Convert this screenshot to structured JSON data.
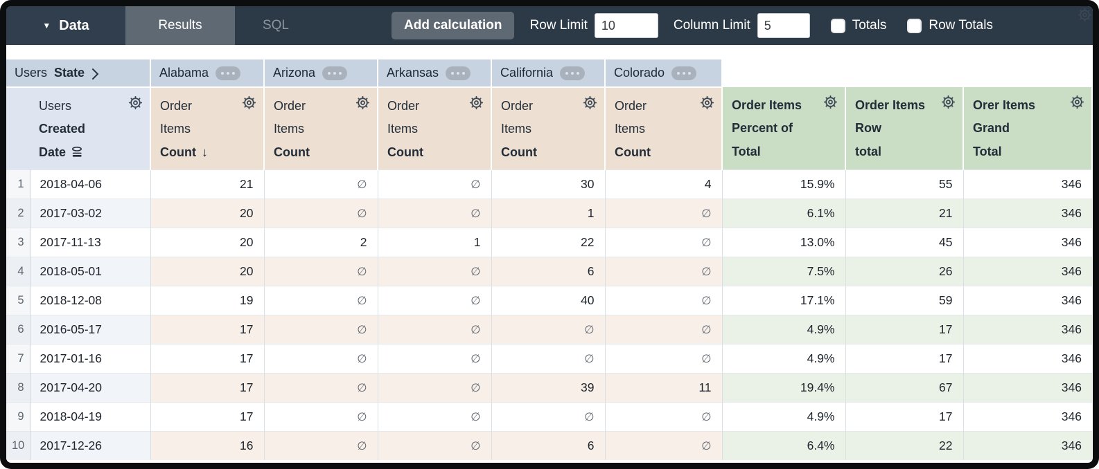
{
  "toolbar": {
    "data_label": "Data",
    "tabs": [
      {
        "label": "Results",
        "active": true
      },
      {
        "label": "SQL",
        "active": false
      }
    ],
    "add_calculation_label": "Add calculation",
    "row_limit_label": "Row Limit",
    "row_limit_value": "10",
    "column_limit_label": "Column Limit",
    "column_limit_value": "5",
    "totals_label": "Totals",
    "totals_checked": false,
    "row_totals_label": "Row Totals",
    "row_totals_checked": false
  },
  "pivot": {
    "dimension_label_plain": "Users",
    "dimension_label_bold": "State",
    "values": [
      "Alabama",
      "Arizona",
      "Arkansas",
      "California",
      "Colorado"
    ]
  },
  "table": {
    "row_dimension_header": {
      "line1": "Users",
      "line2": "Created",
      "line3": "Date"
    },
    "measure_header": {
      "line1": "Order",
      "line2": "Items",
      "line3": "Count"
    },
    "sort_indicator": "↓",
    "sorted_pivot_index": 0,
    "calc_headers": [
      {
        "lines": [
          "Order Items",
          "Percent of",
          "Total"
        ]
      },
      {
        "lines": [
          "Order Items",
          "Row",
          "total"
        ]
      },
      {
        "lines": [
          "Orer Items",
          "Grand",
          "Total"
        ]
      }
    ],
    "null_symbol": "∅",
    "rows": [
      {
        "n": "1",
        "date": "2018-04-06",
        "values": [
          "21",
          null,
          null,
          "30",
          "4"
        ],
        "calcs": [
          "15.9%",
          "55",
          "346"
        ]
      },
      {
        "n": "2",
        "date": "2017-03-02",
        "values": [
          "20",
          null,
          null,
          "1",
          null
        ],
        "calcs": [
          "6.1%",
          "21",
          "346"
        ]
      },
      {
        "n": "3",
        "date": "2017-11-13",
        "values": [
          "20",
          "2",
          "1",
          "22",
          null
        ],
        "calcs": [
          "13.0%",
          "45",
          "346"
        ]
      },
      {
        "n": "4",
        "date": "2018-05-01",
        "values": [
          "20",
          null,
          null,
          "6",
          null
        ],
        "calcs": [
          "7.5%",
          "26",
          "346"
        ]
      },
      {
        "n": "5",
        "date": "2018-12-08",
        "values": [
          "19",
          null,
          null,
          "40",
          null
        ],
        "calcs": [
          "17.1%",
          "59",
          "346"
        ]
      },
      {
        "n": "6",
        "date": "2016-05-17",
        "values": [
          "17",
          null,
          null,
          null,
          null
        ],
        "calcs": [
          "4.9%",
          "17",
          "346"
        ]
      },
      {
        "n": "7",
        "date": "2017-01-16",
        "values": [
          "17",
          null,
          null,
          null,
          null
        ],
        "calcs": [
          "4.9%",
          "17",
          "346"
        ]
      },
      {
        "n": "8",
        "date": "2017-04-20",
        "values": [
          "17",
          null,
          null,
          "39",
          "11"
        ],
        "calcs": [
          "19.4%",
          "67",
          "346"
        ]
      },
      {
        "n": "9",
        "date": "2018-04-19",
        "values": [
          "17",
          null,
          null,
          null,
          null
        ],
        "calcs": [
          "4.9%",
          "17",
          "346"
        ]
      },
      {
        "n": "10",
        "date": "2017-12-26",
        "values": [
          "16",
          null,
          null,
          "6",
          null
        ],
        "calcs": [
          "6.4%",
          "22",
          "346"
        ]
      }
    ]
  },
  "colors": {
    "topbar": "#2c3946",
    "active_tab": "#5e6973",
    "pivot_header": "#c7d3e0",
    "dimension_header": "#dee5f0",
    "measure_header": "#eddfd1",
    "calc_header": "#c9dec5",
    "even_row_measure": "#f7efe8",
    "even_row_calc": "#eaf2e8"
  }
}
